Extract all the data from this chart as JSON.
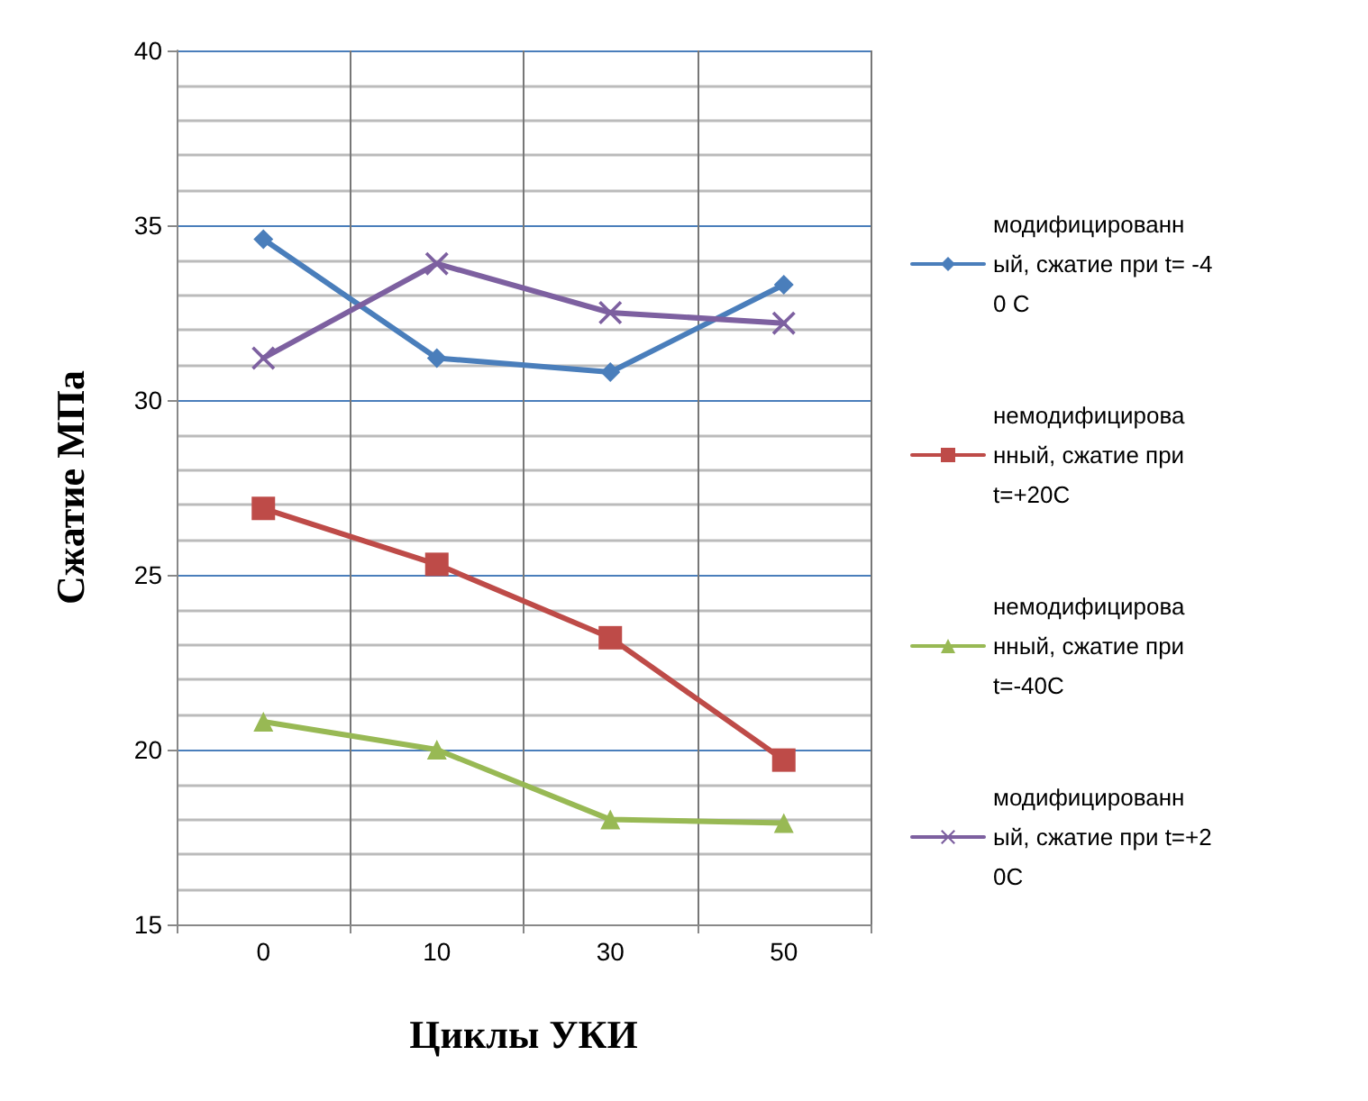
{
  "chart_data": {
    "type": "line",
    "xlabel": "Циклы УКИ",
    "ylabel": "Сжатие МПа",
    "categories": [
      "0",
      "10",
      "30",
      "50"
    ],
    "series": [
      {
        "name": "модифицированный, сжатие при t= -40 C",
        "color": "#4a7ebb",
        "marker": "diamond",
        "values": [
          34.6,
          31.2,
          30.8,
          33.3
        ]
      },
      {
        "name": "немодифицированный, сжатие при t=+20C",
        "color": "#be4b48",
        "marker": "square",
        "values": [
          26.9,
          25.3,
          23.2,
          19.7
        ]
      },
      {
        "name": "немодифицированный, сжатие при t=-40C",
        "color": "#98b954",
        "marker": "triangle",
        "values": [
          20.8,
          20.0,
          18.0,
          17.9
        ]
      },
      {
        "name": "модифицированный, сжатие при t=+20C",
        "color": "#7d60a0",
        "marker": "cross",
        "values": [
          31.2,
          33.9,
          32.5,
          32.2
        ]
      }
    ],
    "ylim": [
      15,
      40
    ],
    "yticks": [
      15,
      20,
      25,
      30,
      35,
      40
    ],
    "grid": true,
    "legend": "right"
  }
}
